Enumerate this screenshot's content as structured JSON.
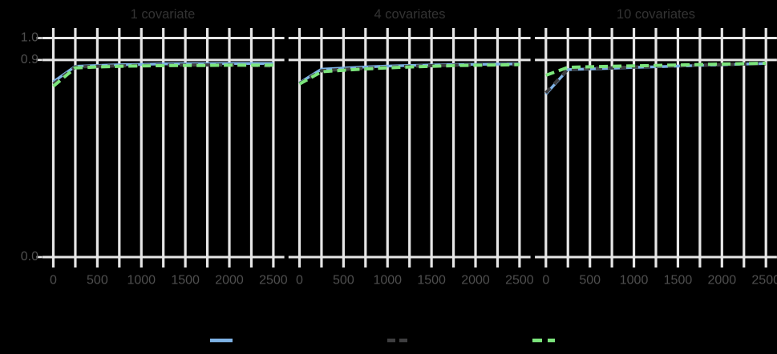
{
  "figure_background": "#000000",
  "colors": {
    "gridline": "#e6e6e6",
    "tick": "#e6e6e6",
    "axis_text": "#4f4f4f",
    "strip_text": "#333333",
    "series_blue": "#7EB2E5",
    "series_gray": "#3E3E40",
    "series_green": "#7CE57C"
  },
  "axes": {
    "x_tick_labels": [
      "0",
      "500",
      "1000",
      "1500",
      "2000",
      "2500"
    ],
    "y_tick_labels": [
      "1.0",
      "0.9",
      "0.0"
    ]
  },
  "legend": {
    "entries": [
      {
        "label": "",
        "color": "#7EB2E5",
        "style": "solid",
        "dasharray": ""
      },
      {
        "label": "",
        "color": "#3E3E40",
        "style": "dashed",
        "dasharray": "10 5"
      },
      {
        "label": "",
        "color": "#7CE57C",
        "style": "dashed",
        "dasharray": "12 7"
      }
    ]
  },
  "chart_data": {
    "type": "line",
    "title": "",
    "xlabel": "",
    "ylabel": "",
    "x": [
      0,
      250,
      500,
      750,
      1000,
      1250,
      1500,
      1750,
      2000,
      2250,
      2500
    ],
    "x_gridlines": [
      0,
      250,
      500,
      750,
      1000,
      1250,
      1500,
      1750,
      2000,
      2250,
      2500
    ],
    "x_labeled_ticks": [
      0,
      500,
      1000,
      1500,
      2000,
      2500
    ],
    "y_ticks": [
      0.0,
      0.9,
      1.0
    ],
    "xlim": [
      0,
      2500
    ],
    "ylim": [
      0.0,
      1.0
    ],
    "grid": true,
    "legend_position": "bottom",
    "facets": [
      {
        "title": "1 covariate",
        "series": [
          {
            "name": "blue-solid",
            "color": "#7EB2E5",
            "style": "solid",
            "values": [
              0.8,
              0.871,
              0.875,
              0.878,
              0.88,
              0.882,
              0.883,
              0.883,
              0.884,
              0.884,
              0.884
            ]
          },
          {
            "name": "gray-dashed",
            "color": "#3E3E40",
            "style": "dashed",
            "values": [
              0.79,
              0.868,
              0.871,
              0.873,
              0.875,
              0.876,
              0.877,
              0.877,
              0.877,
              0.875,
              0.872
            ]
          },
          {
            "name": "green-dashed",
            "color": "#7CE57C",
            "style": "dashed",
            "values": [
              0.78,
              0.864,
              0.868,
              0.871,
              0.873,
              0.874,
              0.875,
              0.875,
              0.876,
              0.876,
              0.876
            ]
          }
        ]
      },
      {
        "title": "4 covariates",
        "series": [
          {
            "name": "blue-solid",
            "color": "#7EB2E5",
            "style": "solid",
            "values": [
              0.795,
              0.858,
              0.863,
              0.868,
              0.872,
              0.875,
              0.877,
              0.879,
              0.88,
              0.881,
              0.882
            ]
          },
          {
            "name": "gray-dashed",
            "color": "#3E3E40",
            "style": "dashed",
            "values": [
              0.792,
              0.851,
              0.857,
              0.862,
              0.867,
              0.871,
              0.874,
              0.876,
              0.877,
              0.878,
              0.879
            ]
          },
          {
            "name": "green-dashed",
            "color": "#7CE57C",
            "style": "dashed",
            "values": [
              0.79,
              0.846,
              0.853,
              0.859,
              0.864,
              0.868,
              0.871,
              0.874,
              0.876,
              0.877,
              0.879
            ]
          }
        ]
      },
      {
        "title": "10 covariates",
        "series": [
          {
            "name": "blue-solid",
            "color": "#7EB2E5",
            "style": "solid",
            "values": [
              0.744,
              0.856,
              0.859,
              0.862,
              0.866,
              0.869,
              0.872,
              0.875,
              0.878,
              0.881,
              0.884
            ]
          },
          {
            "name": "gray-dashed",
            "color": "#3E3E40",
            "style": "dashed",
            "values": [
              0.75,
              0.858,
              0.861,
              0.864,
              0.868,
              0.871,
              0.873,
              0.876,
              0.879,
              0.881,
              0.883
            ]
          },
          {
            "name": "green-dashed",
            "color": "#7CE57C",
            "style": "dashed",
            "values": [
              0.83,
              0.866,
              0.869,
              0.871,
              0.873,
              0.875,
              0.877,
              0.879,
              0.881,
              0.883,
              0.885
            ]
          }
        ]
      }
    ]
  }
}
